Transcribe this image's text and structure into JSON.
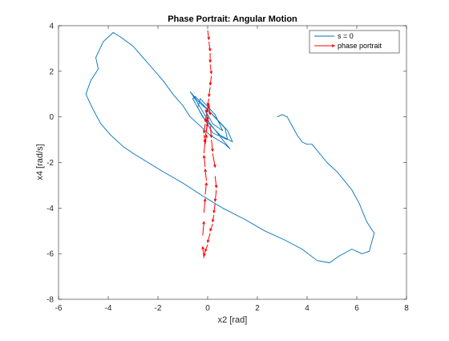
{
  "chart_data": {
    "type": "line",
    "title": "Phase Portrait: Angular Motion",
    "xlabel": "x2 [rad]",
    "ylabel": "x4 [rad/s]",
    "xlim": [
      -6,
      8
    ],
    "ylim": [
      -8,
      4
    ],
    "xticks": [
      "-6",
      "-4",
      "-2",
      "0",
      "2",
      "4",
      "6",
      "8"
    ],
    "yticks": [
      "-8",
      "-6",
      "-4",
      "-2",
      "0",
      "2",
      "4"
    ],
    "grid": false,
    "legend": {
      "placement": "top-right"
    },
    "series": [
      {
        "name": "s = 0",
        "color": "#0072BD",
        "style": "line",
        "x": [
          2.8,
          3.0,
          3.2,
          3.4,
          3.6,
          3.8,
          4.0,
          4.2,
          4.5,
          4.8,
          5.2,
          5.5,
          5.8,
          6.1,
          6.4,
          6.7,
          6.6,
          6.5,
          6.2,
          5.8,
          5.3,
          4.9,
          4.4,
          3.8,
          3.1,
          2.3,
          1.5,
          0.6,
          -0.3,
          -1.0,
          -1.8,
          -2.4,
          -3.0,
          -3.4,
          -3.9,
          -4.3,
          -4.6,
          -4.9,
          -4.7,
          -4.4,
          -4.5,
          -4.2,
          -3.8,
          -3.5,
          -3.0,
          -2.6,
          -2.2,
          -1.8,
          -1.4,
          -1.0,
          -0.7,
          -0.4,
          -0.2,
          0.1,
          0.4,
          0.7,
          0.9,
          0.6,
          0.1,
          -0.4,
          -0.7,
          -0.4,
          0.2,
          0.8,
          1.0,
          0.5,
          -0.2,
          -0.6,
          -0.5,
          0.1,
          0.7,
          0.8,
          0.2,
          -0.4,
          -0.3,
          0.3,
          0.6,
          0.2,
          -0.1,
          0.0
        ],
        "y": [
          0.0,
          0.1,
          0.0,
          -0.4,
          -0.8,
          -1.1,
          -1.2,
          -1.2,
          -1.6,
          -2.0,
          -2.4,
          -2.8,
          -3.2,
          -3.8,
          -4.6,
          -5.1,
          -5.5,
          -5.9,
          -6.0,
          -5.8,
          -6.1,
          -6.4,
          -6.3,
          -5.8,
          -5.4,
          -5.0,
          -4.5,
          -4.0,
          -3.4,
          -2.9,
          -2.4,
          -2.0,
          -1.6,
          -1.3,
          -0.8,
          -0.3,
          0.3,
          1.0,
          1.6,
          2.1,
          2.6,
          3.3,
          3.7,
          3.5,
          3.1,
          2.6,
          2.1,
          1.6,
          1.0,
          0.5,
          0.0,
          -0.3,
          -0.5,
          -0.8,
          -1.0,
          -1.2,
          -1.4,
          -1.0,
          -0.3,
          0.6,
          1.1,
          0.7,
          0.1,
          -0.6,
          -1.1,
          -0.8,
          0.0,
          0.8,
          0.9,
          0.2,
          -0.5,
          -1.0,
          -0.7,
          0.4,
          0.8,
          0.1,
          -0.6,
          -0.3,
          0.3,
          0.0
        ]
      },
      {
        "name": "phase portrait",
        "color": "#FF0000",
        "style": "quiver",
        "x": [
          0.0,
          0.05,
          0.1,
          0.1,
          0.15,
          0.1,
          0.05,
          0.0,
          -0.05,
          -0.1,
          -0.15,
          -0.1,
          -0.05,
          0.0,
          0.05,
          0.1,
          0.15,
          0.2,
          0.3,
          0.35,
          0.3,
          0.25,
          0.2,
          0.1,
          0.0,
          -0.1,
          -0.15,
          -0.2,
          -0.15,
          -0.1,
          -0.05,
          -0.1,
          -0.15,
          -0.1,
          0.0,
          0.0
        ],
        "y": [
          3.8,
          3.3,
          2.8,
          2.3,
          1.8,
          1.3,
          0.8,
          0.4,
          0.1,
          -0.3,
          -0.8,
          -1.2,
          -0.6,
          0.2,
          0.6,
          -0.4,
          -1.0,
          -1.6,
          -2.6,
          -3.2,
          -3.8,
          -4.3,
          -4.7,
          -5.1,
          -5.6,
          -5.9,
          -6.2,
          -5.2,
          -4.2,
          -3.4,
          -2.8,
          -2.2,
          -1.6,
          -0.9,
          -0.2,
          0.0
        ],
        "u": [
          0.05,
          0.05,
          0.0,
          0.05,
          -0.05,
          -0.05,
          -0.05,
          -0.05,
          -0.05,
          -0.05,
          0.05,
          0.05,
          0.05,
          0.05,
          0.05,
          0.05,
          0.05,
          0.1,
          0.05,
          -0.05,
          -0.05,
          -0.05,
          -0.1,
          -0.1,
          -0.1,
          -0.05,
          -0.05,
          0.05,
          0.05,
          0.05,
          -0.05,
          -0.05,
          0.05,
          0.1,
          0.0,
          0.0
        ],
        "v": [
          -0.4,
          -0.4,
          -0.4,
          -0.4,
          -0.4,
          -0.4,
          -0.3,
          -0.2,
          -0.3,
          -0.4,
          -0.3,
          0.4,
          0.5,
          0.3,
          -0.5,
          -0.5,
          -0.5,
          -0.6,
          -0.5,
          -0.5,
          -0.4,
          -0.3,
          -0.3,
          -0.4,
          -0.3,
          -0.2,
          0.5,
          0.6,
          0.6,
          0.5,
          0.5,
          0.5,
          0.6,
          0.6,
          0.2,
          0.0
        ]
      }
    ]
  }
}
